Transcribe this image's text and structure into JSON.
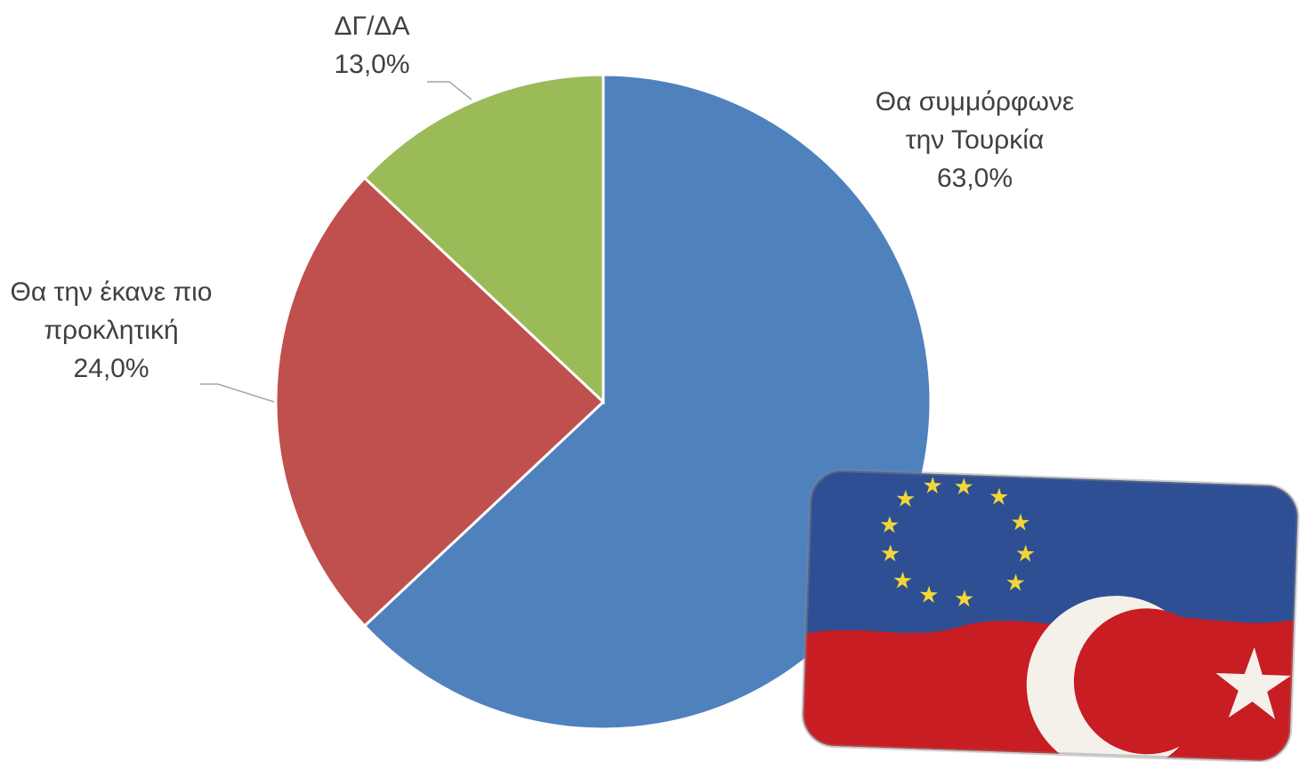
{
  "chart_data": {
    "type": "pie",
    "categories": [
      "Θα συμμόρφωνε την Τουρκία",
      "Θα την έκανε πιο προκλητική",
      "ΔΓ/ΔΑ"
    ],
    "values": [
      63.0,
      24.0,
      13.0
    ],
    "value_labels": [
      "63,0%",
      "24,0%",
      "13,0%"
    ],
    "colors": [
      "#4f81bd",
      "#c0504d",
      "#9bbb59"
    ]
  }
}
